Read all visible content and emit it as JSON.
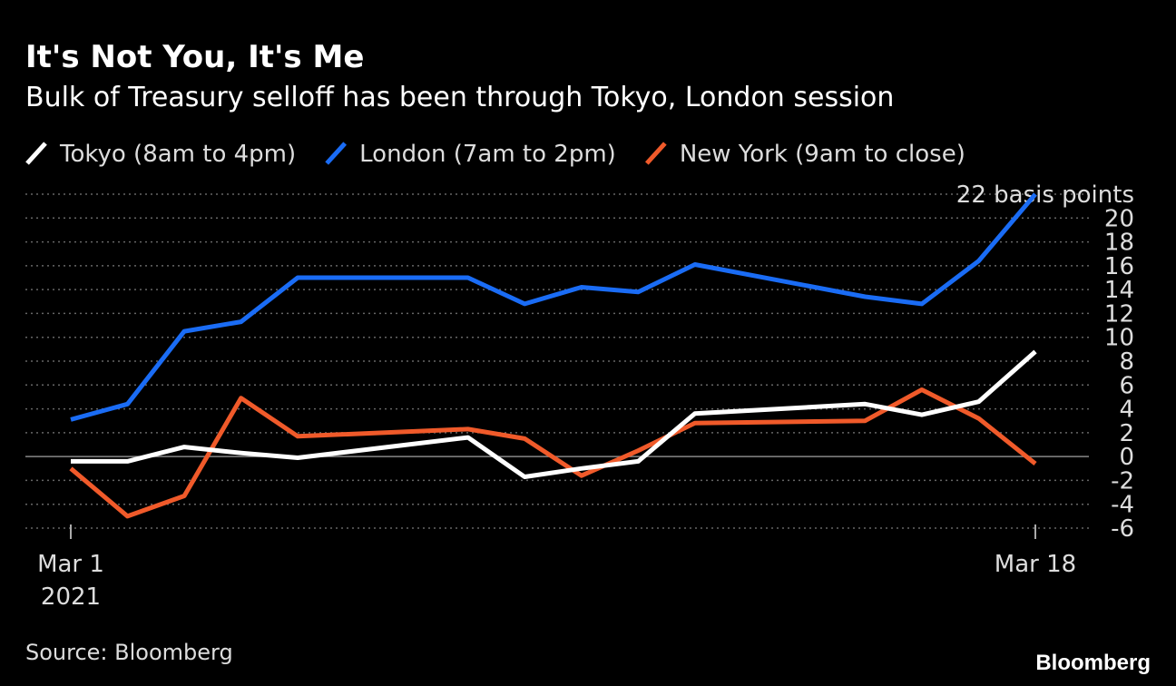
{
  "chart_data": {
    "type": "line",
    "title": "It's Not You, It's Me",
    "subtitle": "Bulk of Treasury selloff has been through Tokyo, London session",
    "source": "Source: Bloomberg",
    "brand": "Bloomberg",
    "x": [
      "2021-03-01",
      "2021-03-02",
      "2021-03-03",
      "2021-03-04",
      "2021-03-05",
      "2021-03-08",
      "2021-03-09",
      "2021-03-10",
      "2021-03-11",
      "2021-03-12",
      "2021-03-15",
      "2021-03-16",
      "2021-03-17",
      "2021-03-18"
    ],
    "xlim": [
      "2021-03-01",
      "2021-03-18"
    ],
    "xticks": [
      {
        "value": "2021-03-01",
        "label": "Mar 1"
      },
      {
        "value": "2021-03-18",
        "label": "Mar 18"
      }
    ],
    "x_year_label": "2021",
    "series": [
      {
        "name": "Tokyo (8am to 4pm)",
        "color": "#ffffff",
        "values": [
          -0.4,
          -0.4,
          0.8,
          0.3,
          -0.1,
          1.6,
          -1.7,
          -1.0,
          -0.4,
          3.6,
          4.4,
          3.5,
          4.6,
          8.8
        ]
      },
      {
        "name": "London (7am to 2pm)",
        "color": "#1a6cf5",
        "values": [
          3.1,
          4.4,
          10.5,
          11.3,
          15,
          15,
          12.8,
          14.2,
          13.8,
          16.1,
          13.4,
          12.8,
          16.4,
          22
        ]
      },
      {
        "name": "New York (9am to close)",
        "color": "#f05a2a",
        "values": [
          -1,
          -5,
          -3.3,
          4.9,
          1.7,
          2.3,
          1.5,
          -1.6,
          0.5,
          2.8,
          3.0,
          5.6,
          3.2,
          -0.6
        ]
      }
    ],
    "ylim": [
      -6,
      22
    ],
    "yticks": [
      -6,
      -4,
      -2,
      0,
      2,
      4,
      6,
      8,
      10,
      12,
      14,
      16,
      18,
      20,
      {
        "value": 22,
        "label": "22 basis points"
      }
    ],
    "grid": true
  }
}
